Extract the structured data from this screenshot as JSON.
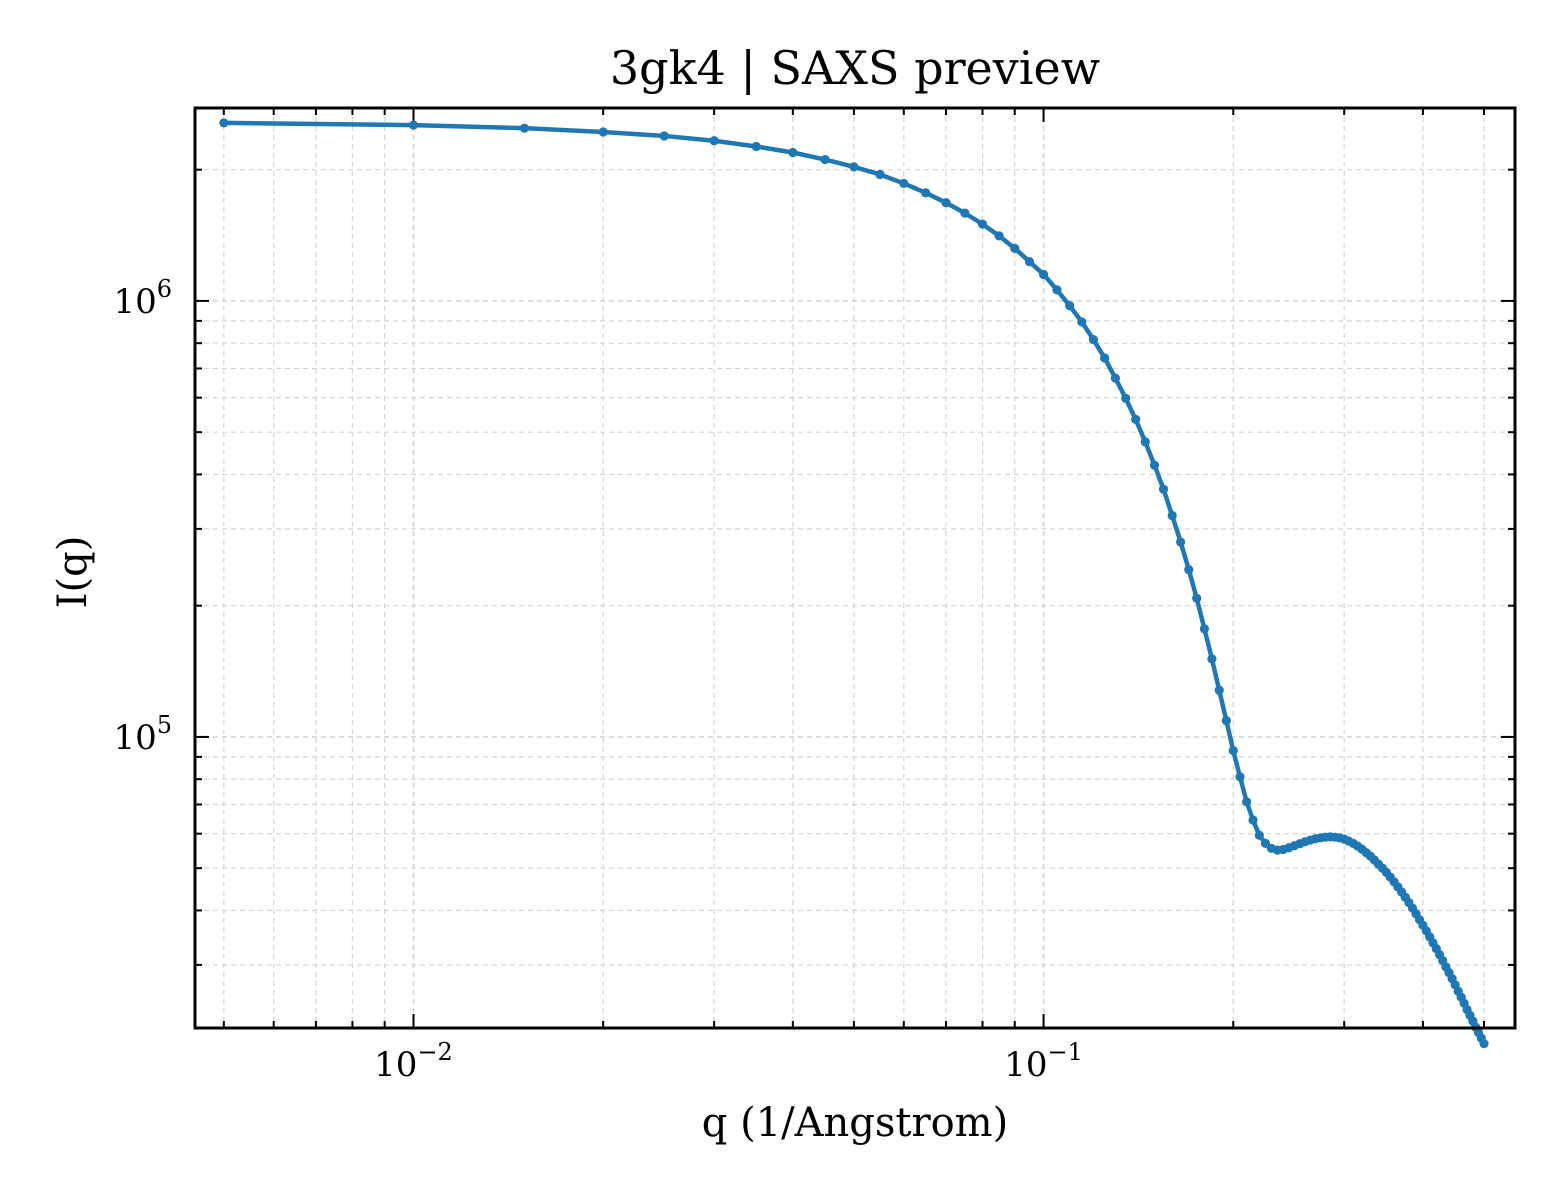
{
  "chart_data": {
    "type": "line",
    "title": "3gk4 | SAXS preview",
    "xlabel": "q (1/Angstrom)",
    "ylabel": "I(q)",
    "xscale": "log",
    "yscale": "log",
    "xlim": [
      0.0045,
      0.56
    ],
    "ylim": [
      21500,
      2770000
    ],
    "grid": true,
    "legend": "none",
    "x_ticks": [
      {
        "value": 0.01,
        "base": "10",
        "exp": "−2"
      },
      {
        "value": 0.1,
        "base": "10",
        "exp": "−1"
      }
    ],
    "y_ticks": [
      {
        "value": 100000,
        "base": "10",
        "exp": "5"
      },
      {
        "value": 1000000,
        "base": "10",
        "exp": "6"
      }
    ],
    "series": [
      {
        "color": "#1f77b4",
        "x": [
          0.005,
          0.01,
          0.015,
          0.02,
          0.025,
          0.03,
          0.035,
          0.04,
          0.045,
          0.05,
          0.055,
          0.06,
          0.065,
          0.07,
          0.075,
          0.08,
          0.085,
          0.09,
          0.095,
          0.1,
          0.105,
          0.11,
          0.115,
          0.12,
          0.125,
          0.13,
          0.135,
          0.14,
          0.145,
          0.15,
          0.155,
          0.16,
          0.165,
          0.17,
          0.175,
          0.18,
          0.185,
          0.19,
          0.195,
          0.2,
          0.205,
          0.21,
          0.215,
          0.22,
          0.225,
          0.23,
          0.235,
          0.24,
          0.245,
          0.25,
          0.255,
          0.26,
          0.265,
          0.27,
          0.275,
          0.28,
          0.285,
          0.29,
          0.295,
          0.3,
          0.305,
          0.31,
          0.315,
          0.32,
          0.325,
          0.33,
          0.335,
          0.34,
          0.345,
          0.35,
          0.355,
          0.36,
          0.365,
          0.37,
          0.375,
          0.38,
          0.385,
          0.39,
          0.395,
          0.4,
          0.405,
          0.41,
          0.415,
          0.42,
          0.425,
          0.43,
          0.435,
          0.44,
          0.445,
          0.45,
          0.455,
          0.46,
          0.465,
          0.47,
          0.475,
          0.48,
          0.485,
          0.49,
          0.495,
          0.5
        ],
        "y": [
          2560000,
          2530000,
          2490000,
          2440000,
          2390000,
          2330000,
          2260000,
          2190000,
          2110000,
          2030000,
          1950000,
          1860000,
          1770000,
          1680000,
          1590000,
          1500000,
          1410000,
          1320000,
          1230000,
          1150000,
          1060000,
          975000,
          895000,
          815000,
          740000,
          665000,
          598000,
          535000,
          475000,
          420000,
          370000,
          322000,
          280000,
          242000,
          208000,
          177000,
          151000,
          128000,
          109000,
          93000,
          81000,
          71000,
          64500,
          59500,
          57000,
          55500,
          55000,
          55200,
          55700,
          56300,
          56900,
          57500,
          58000,
          58400,
          58700,
          58900,
          59000,
          58900,
          58700,
          58300,
          57700,
          57000,
          56200,
          55300,
          54300,
          53300,
          52200,
          51100,
          50000,
          48900,
          47700,
          46500,
          45300,
          44100,
          42900,
          41700,
          40500,
          39300,
          38100,
          37000,
          35900,
          34800,
          33700,
          32700,
          31700,
          30700,
          29700,
          28800,
          27900,
          27000,
          26100,
          25300,
          24500,
          23700,
          23000,
          22300,
          21600,
          21000,
          20400,
          19800
        ]
      }
    ]
  }
}
